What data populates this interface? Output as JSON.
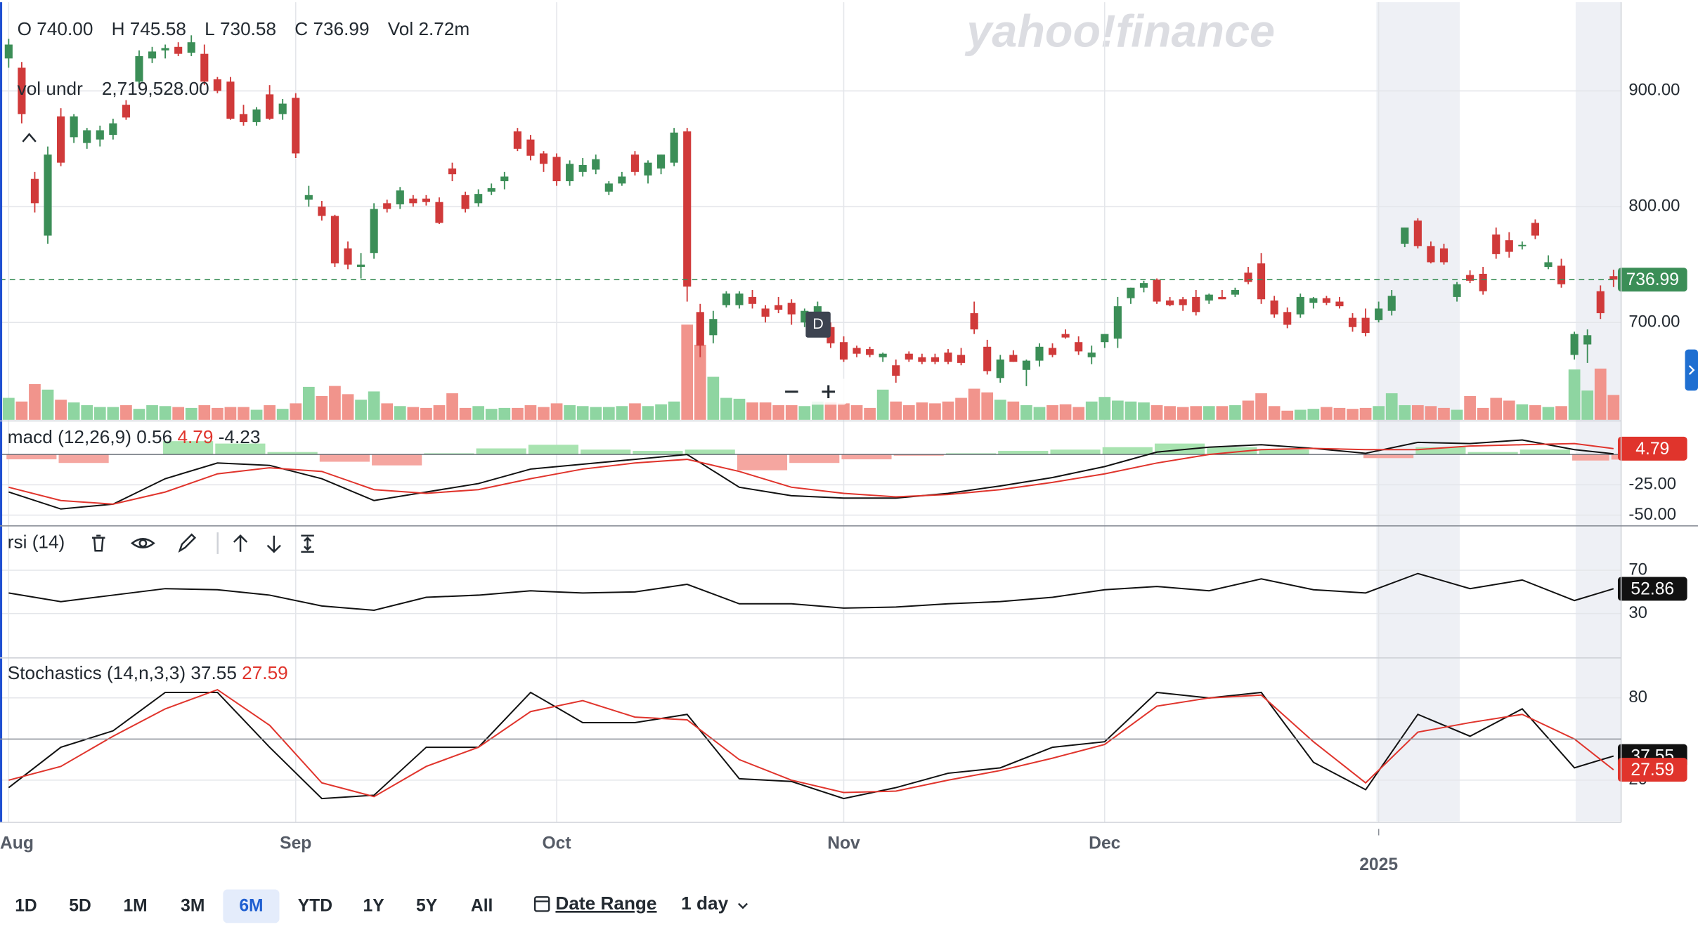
{
  "legend": {
    "labels": [
      "O",
      "H",
      "L",
      "C",
      "Vol"
    ],
    "values": [
      "740.00",
      "745.58",
      "730.58",
      "736.99",
      "2.72m"
    ]
  },
  "volume_legend": {
    "label": "vol undr",
    "value": "2,719,528.00"
  },
  "watermark": "yahoo!finance",
  "marker": "D",
  "toolbar": {
    "ranges": [
      "1D",
      "5D",
      "1M",
      "3M",
      "6M",
      "YTD",
      "1Y",
      "5Y",
      "All"
    ],
    "selected": 4,
    "date_range": "Date Range",
    "interval": "1 day"
  },
  "chart_data": [
    {
      "type": "candlestick",
      "open": [
        928,
        920,
        824,
        775,
        878,
        860,
        855,
        858,
        862,
        888,
        908,
        928,
        935,
        938,
        933,
        932,
        910,
        908,
        880,
        873,
        897,
        880,
        894,
        806,
        800,
        792,
        764,
        748,
        760,
        803,
        802,
        807,
        807,
        804,
        833,
        810,
        803,
        813,
        822,
        865,
        858,
        846,
        843,
        822,
        830,
        832,
        813,
        820,
        845,
        827,
        833,
        838,
        865,
        709,
        689,
        715,
        715,
        722,
        712,
        715,
        717,
        700,
        705,
        696,
        683,
        678,
        677,
        670,
        663,
        673,
        670,
        670,
        674,
        672,
        708,
        679,
        652,
        672,
        659,
        667,
        678,
        690,
        683,
        670,
        683,
        686,
        721,
        730,
        737,
        719,
        720,
        722,
        719,
        722,
        724,
        743,
        751,
        719,
        709,
        707,
        717,
        721,
        718,
        704,
        704,
        702,
        710,
        768,
        788,
        766,
        764,
        722,
        741,
        742,
        776,
        771,
        766,
        786,
        748,
        749,
        672,
        681,
        727,
        740
      ],
      "high": [
        945,
        925,
        830,
        852,
        885,
        880,
        868,
        870,
        876,
        892,
        935,
        938,
        940,
        942,
        948,
        940,
        912,
        912,
        888,
        886,
        905,
        893,
        898,
        818,
        805,
        793,
        770,
        760,
        803,
        806,
        817,
        810,
        810,
        808,
        838,
        813,
        815,
        820,
        830,
        868,
        862,
        848,
        846,
        840,
        842,
        845,
        822,
        830,
        848,
        840,
        845,
        868,
        868,
        716,
        710,
        727,
        727,
        728,
        715,
        722,
        720,
        712,
        718,
        700,
        688,
        680,
        679,
        674,
        668,
        675,
        673,
        673,
        677,
        678,
        718,
        685,
        672,
        676,
        668,
        682,
        682,
        694,
        688,
        680,
        690,
        722,
        730,
        736,
        738,
        722,
        722,
        728,
        725,
        728,
        730,
        748,
        760,
        723,
        713,
        725,
        722,
        723,
        722,
        708,
        712,
        718,
        728,
        782,
        790,
        770,
        768,
        735,
        745,
        748,
        782,
        778,
        770,
        789,
        758,
        755,
        692,
        694,
        732,
        745.58
      ],
      "low": [
        920,
        872,
        795,
        768,
        835,
        855,
        850,
        852,
        858,
        875,
        905,
        924,
        928,
        930,
        930,
        905,
        898,
        875,
        870,
        870,
        875,
        875,
        842,
        800,
        788,
        748,
        746,
        738,
        755,
        795,
        798,
        800,
        801,
        785,
        822,
        795,
        800,
        810,
        815,
        848,
        840,
        830,
        818,
        818,
        826,
        828,
        810,
        818,
        827,
        820,
        828,
        835,
        718,
        670,
        682,
        713,
        712,
        712,
        700,
        708,
        698,
        696,
        700,
        678,
        666,
        670,
        670,
        666,
        648,
        666,
        664,
        664,
        664,
        663,
        690,
        655,
        648,
        666,
        645,
        662,
        670,
        686,
        672,
        664,
        678,
        678,
        716,
        726,
        716,
        714,
        710,
        706,
        716,
        720,
        722,
        733,
        716,
        704,
        695,
        704,
        712,
        715,
        712,
        692,
        688,
        700,
        706,
        765,
        764,
        751,
        750,
        718,
        734,
        724,
        755,
        756,
        763,
        772,
        746,
        730,
        668,
        665,
        703,
        730.58
      ],
      "close": [
        940,
        880,
        803,
        845,
        838,
        878,
        866,
        866,
        872,
        877,
        930,
        934,
        937,
        932,
        942,
        908,
        900,
        876,
        873,
        884,
        876,
        889,
        846,
        810,
        792,
        751,
        750,
        750,
        798,
        798,
        814,
        803,
        804,
        786,
        828,
        798,
        811,
        816,
        826,
        850,
        844,
        837,
        822,
        837,
        836,
        841,
        820,
        826,
        830,
        838,
        845,
        864,
        731,
        680,
        703,
        725,
        725,
        716,
        705,
        711,
        707,
        710,
        714,
        682,
        668,
        673,
        672,
        673,
        654,
        668,
        666,
        666,
        666,
        665,
        694,
        658,
        668,
        666,
        667,
        679,
        672,
        687,
        675,
        674,
        690,
        714,
        730,
        734,
        718,
        715,
        715,
        709,
        724,
        720,
        728,
        735,
        720,
        707,
        698,
        722,
        721,
        717,
        714,
        696,
        691,
        712,
        723,
        782,
        766,
        752,
        752,
        733,
        736,
        727,
        759,
        761,
        767,
        775,
        752,
        733,
        690,
        689,
        708,
        736.99
      ],
      "volume": [
        2.4,
        2.0,
        3.9,
        3.3,
        2.2,
        1.9,
        1.6,
        1.4,
        1.4,
        1.6,
        1.2,
        1.6,
        1.5,
        1.4,
        1.3,
        1.6,
        1.3,
        1.4,
        1.4,
        1.1,
        1.6,
        1.2,
        1.8,
        3.6,
        2.6,
        3.7,
        2.8,
        2.2,
        3.1,
        1.8,
        1.5,
        1.4,
        1.3,
        1.6,
        2.9,
        1.3,
        1.5,
        1.2,
        1.3,
        1.3,
        1.6,
        1.4,
        1.8,
        1.6,
        1.5,
        1.4,
        1.4,
        1.5,
        1.8,
        1.5,
        1.7,
        2.0,
        10.4,
        8.2,
        4.7,
        2.4,
        2.3,
        1.9,
        1.9,
        1.6,
        1.6,
        1.5,
        2.0,
        1.9,
        1.8,
        1.6,
        1.3,
        3.3,
        2.0,
        1.6,
        1.9,
        1.8,
        2.0,
        2.4,
        3.4,
        3.0,
        2.2,
        2.0,
        1.6,
        1.4,
        1.6,
        1.7,
        1.4,
        2.0,
        2.5,
        2.1,
        2.0,
        1.9,
        1.6,
        1.5,
        1.4,
        1.5,
        1.5,
        1.5,
        1.6,
        2.1,
        2.9,
        1.5,
        1.0,
        1.1,
        1.2,
        1.4,
        1.3,
        1.2,
        1.3,
        1.5,
        2.9,
        1.6,
        1.6,
        1.5,
        1.3,
        1.1,
        2.6,
        1.3,
        2.4,
        2.1,
        1.7,
        1.6,
        1.4,
        1.5,
        5.5,
        3.2,
        5.6,
        2.72
      ],
      "up_color": "#3b8e57",
      "down_color": "#d03a3a",
      "up_volume_color": "#8ed5a1",
      "down_volume_color": "#f1948c",
      "ylim": [
        615.9,
        978.5
      ],
      "yticks": [
        {
          "value": 700,
          "label": "700.00"
        },
        {
          "value": 800,
          "label": "800.00"
        },
        {
          "value": 900,
          "label": "900.00"
        }
      ],
      "xticks": [
        {
          "value": 0,
          "label": "Aug"
        },
        {
          "value": 22,
          "label": "Sep"
        },
        {
          "value": 42,
          "label": "Oct"
        },
        {
          "value": 64,
          "label": "Nov"
        },
        {
          "value": 84,
          "label": "Dec"
        },
        {
          "value": 105,
          "label": "2025"
        }
      ],
      "tags": [
        {
          "value": 736.99,
          "label": "736.99",
          "color": "#3b8e57"
        }
      ],
      "grid": true
    },
    {
      "type": "line",
      "title": "macd (12,26,9)",
      "x": [
        0,
        4,
        8,
        12,
        16,
        20,
        24,
        28,
        32,
        36,
        40,
        44,
        48,
        52,
        56,
        60,
        64,
        68,
        72,
        76,
        80,
        84,
        88,
        92,
        96,
        100,
        104,
        108,
        112,
        116,
        120,
        123
      ],
      "series": [
        {
          "color": "#111111",
          "current_label": "0.56",
          "values": [
            -31,
            -45,
            -41,
            -20,
            -7,
            -9,
            -20,
            -38,
            -31,
            -24,
            -12,
            -8,
            -4,
            0,
            -27,
            -34,
            -36,
            -36,
            -32,
            -26,
            -19,
            -10,
            2,
            6,
            8,
            5,
            1,
            10,
            9,
            12,
            4,
            0.56
          ]
        },
        {
          "color": "#e0342c",
          "current_label": "4.79",
          "values": [
            -27,
            -38,
            -41,
            -31,
            -16,
            -11,
            -14,
            -29,
            -32,
            -29,
            -20,
            -12,
            -7,
            -4,
            -14,
            -27,
            -32,
            -35,
            -33,
            -29,
            -23,
            -16,
            -7,
            0,
            4,
            5,
            4,
            4,
            7,
            8,
            9,
            4.79
          ]
        }
      ],
      "histogram": {
        "current_label": "-4.23",
        "up_color": "#a8e3b0",
        "down_color": "#f5a6a0",
        "values": [
          -4,
          -7,
          0,
          11,
          9,
          2,
          -6,
          -9,
          1,
          5,
          8,
          4,
          3,
          4,
          -13,
          -7,
          -4,
          -1,
          1,
          3,
          4,
          6,
          9,
          6,
          4,
          0,
          -3,
          6,
          2,
          4,
          -5,
          -4.23
        ]
      },
      "ylim": [
        -58.9,
        25
      ],
      "yticks": [
        {
          "value": -25,
          "label": "-25.00"
        },
        {
          "value": -50,
          "label": "-50.00"
        }
      ],
      "tags": [
        {
          "value": 4.79,
          "label": "4.79",
          "color": "#e0342c"
        }
      ],
      "grid": true
    },
    {
      "type": "line",
      "title": "rsi (14)",
      "x": [
        0,
        4,
        8,
        12,
        16,
        20,
        24,
        28,
        32,
        36,
        40,
        44,
        48,
        52,
        56,
        60,
        64,
        68,
        72,
        76,
        80,
        84,
        88,
        92,
        96,
        100,
        104,
        108,
        112,
        116,
        120,
        123
      ],
      "series": [
        {
          "color": "#111111",
          "values": [
            49,
            41,
            47,
            53,
            52,
            47,
            37,
            33,
            45,
            47,
            51,
            49,
            50,
            57,
            39,
            39,
            35,
            36,
            39,
            41,
            45,
            52,
            55,
            51,
            62,
            52,
            49,
            67,
            53,
            61,
            42,
            52.86
          ]
        }
      ],
      "ylim": [
        -11,
        109
      ],
      "yticks": [
        70,
        30
      ],
      "tags": [
        {
          "value": 52.86,
          "label": "52.86",
          "color": "#111111"
        }
      ],
      "grid": true
    },
    {
      "type": "line",
      "title": "Stochastics (14,n,3,3)",
      "x": [
        0,
        4,
        8,
        12,
        16,
        20,
        24,
        28,
        32,
        36,
        40,
        44,
        48,
        52,
        56,
        60,
        64,
        68,
        72,
        76,
        80,
        84,
        88,
        92,
        96,
        100,
        104,
        108,
        112,
        116,
        120,
        123
      ],
      "series": [
        {
          "color": "#111111",
          "current_label": "37.55",
          "values": [
            14.5,
            44,
            56,
            84,
            84,
            44,
            6.6,
            9,
            44,
            44,
            84,
            62,
            62,
            68,
            21,
            19,
            6.6,
            14.5,
            25,
            29,
            44,
            48,
            84,
            80,
            84,
            33,
            13,
            68,
            52,
            72,
            29,
            37.55
          ]
        },
        {
          "color": "#e0342c",
          "current_label": "27.59",
          "values": [
            20,
            30,
            52,
            72,
            86,
            60,
            18,
            8,
            30,
            44,
            70,
            78,
            66,
            64,
            35,
            20,
            11,
            12,
            20,
            27,
            36,
            46,
            74,
            80,
            82,
            48,
            18,
            55,
            62,
            68,
            50,
            27.59
          ]
        }
      ],
      "ylim": [
        -10.8,
        107.6
      ],
      "yticks": [
        80,
        20
      ],
      "tags": [
        {
          "value": 37.55,
          "label": "37.55",
          "color": "#111111"
        },
        {
          "value": 27.59,
          "label": "27.59",
          "color": "#e0342c"
        }
      ],
      "grid": true
    }
  ]
}
